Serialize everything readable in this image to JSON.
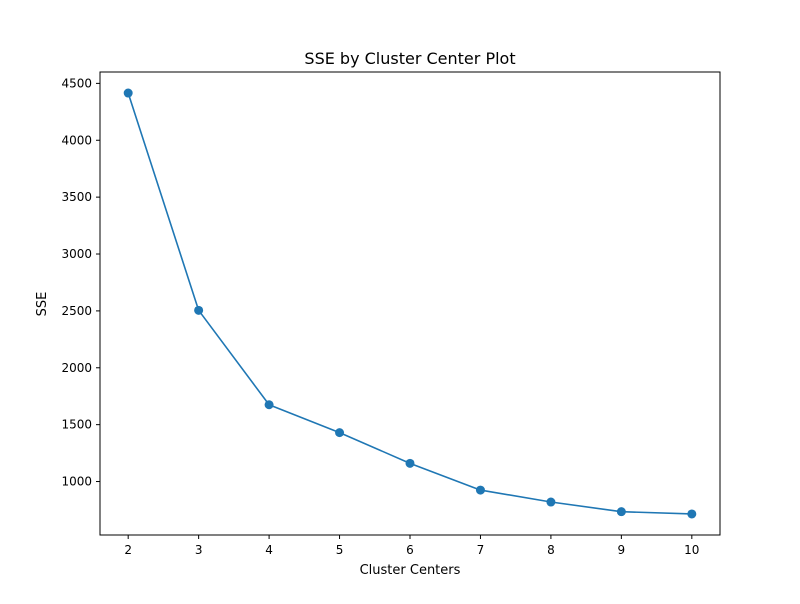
{
  "chart_data": {
    "type": "line",
    "title": "SSE by Cluster Center Plot",
    "xlabel": "Cluster Centers",
    "ylabel": "SSE",
    "x": [
      2,
      3,
      4,
      5,
      6,
      7,
      8,
      9,
      10
    ],
    "series": [
      {
        "values": [
          4415,
          2505,
          1675,
          1430,
          1160,
          925,
          820,
          735,
          715
        ],
        "color": "#1f77b4",
        "marker": "circle"
      }
    ],
    "xticks": [
      "2",
      "3",
      "4",
      "5",
      "6",
      "7",
      "8",
      "9",
      "10"
    ],
    "yticks": [
      "1000",
      "1500",
      "2000",
      "2500",
      "3000",
      "3500",
      "4000",
      "4500"
    ],
    "xlim": [
      1.6,
      10.4
    ],
    "ylim": [
      530,
      4600
    ],
    "grid": false,
    "legend": "none"
  }
}
